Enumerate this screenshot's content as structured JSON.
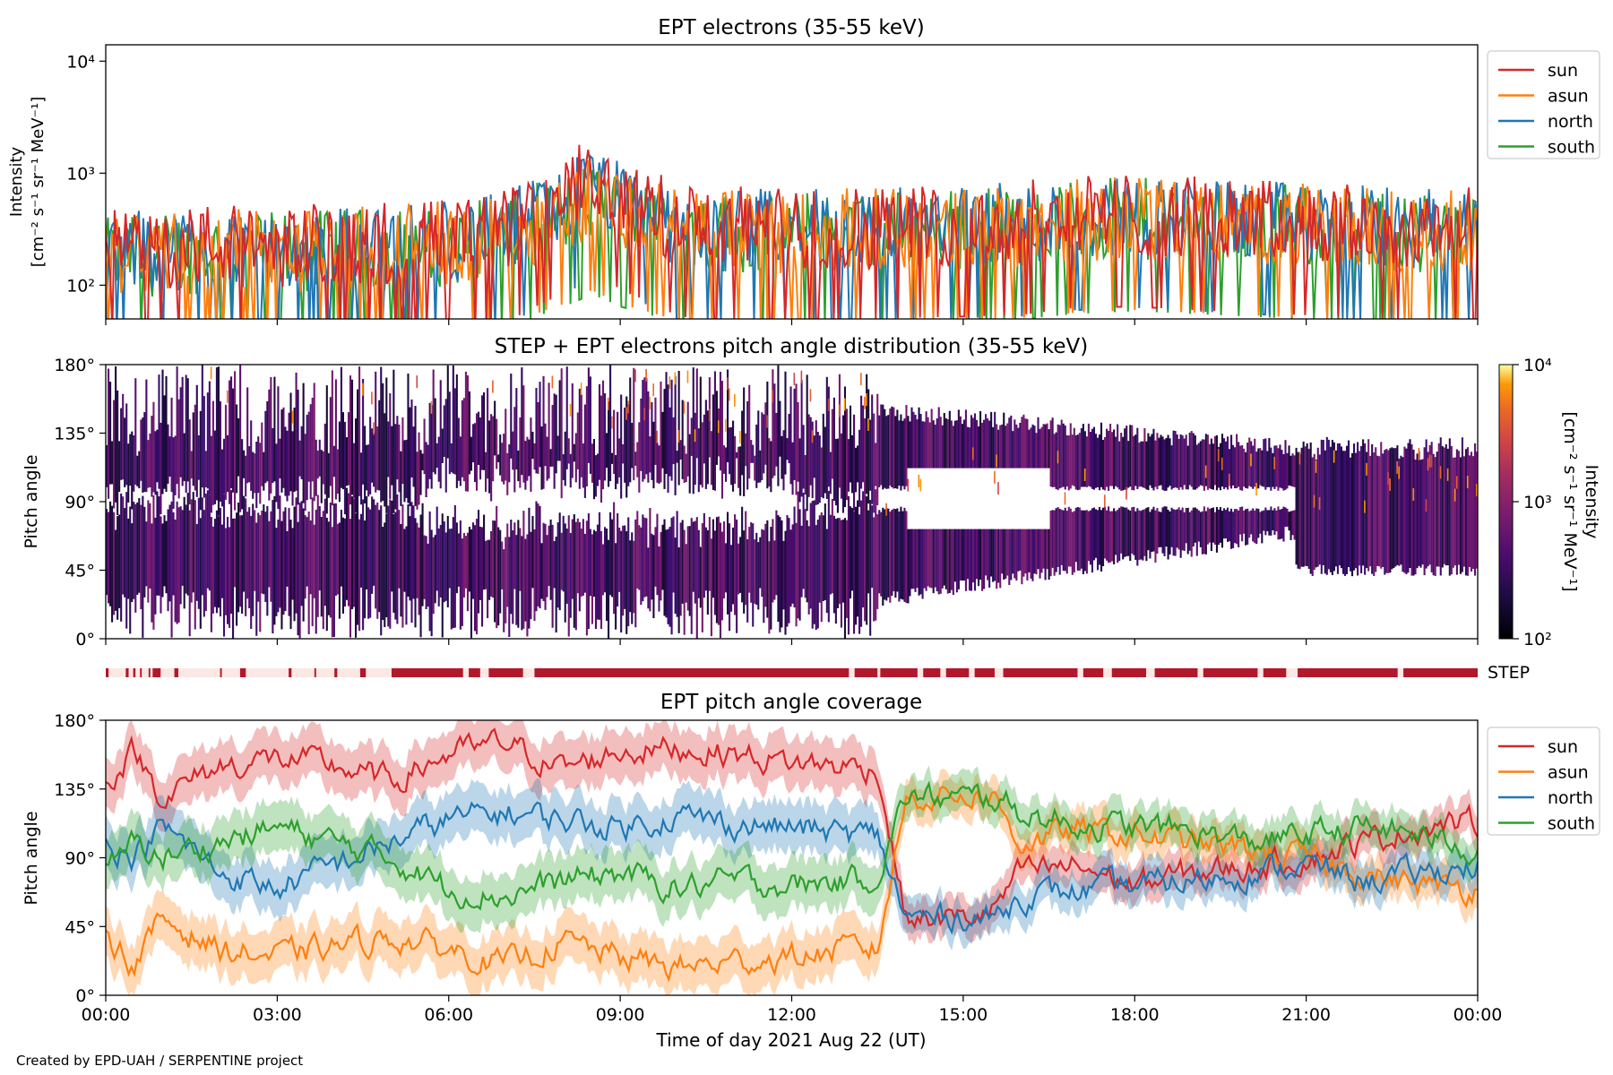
{
  "figure": {
    "credit": "Created by EPD-UAH / SERPENTINE project",
    "xlabel": "Time of day 2021 Aug 22 (UT)",
    "xticks": [
      "00:00",
      "03:00",
      "06:00",
      "09:00",
      "12:00",
      "15:00",
      "18:00",
      "21:00",
      "00:00"
    ]
  },
  "panels": {
    "intensity": {
      "title": "EPT electrons (35-55 keV)",
      "ylabel1": "Intensity",
      "ylabel2": "[cm⁻² s⁻¹ sr⁻¹ MeV⁻¹]",
      "yticks": [
        "10²",
        "10³",
        "10⁴"
      ],
      "legend": [
        "sun",
        "asun",
        "north",
        "south"
      ]
    },
    "pad": {
      "title": "STEP + EPT electrons pitch angle distribution (35-55 keV)",
      "ylabel": "Pitch angle",
      "yticks": [
        "0°",
        "45°",
        "90°",
        "135°",
        "180°"
      ],
      "colorbar_label1": "Intensity",
      "colorbar_label2": "[cm⁻² s⁻¹ sr⁻¹ MeV⁻¹]",
      "colorbar_ticks": [
        "10²",
        "10³",
        "10⁴"
      ]
    },
    "step": {
      "label": "STEP"
    },
    "coverage": {
      "title": "EPT pitch angle coverage",
      "ylabel": "Pitch angle",
      "yticks": [
        "0°",
        "45°",
        "90°",
        "135°",
        "180°"
      ],
      "legend": [
        "sun",
        "asun",
        "north",
        "south"
      ]
    }
  },
  "colors": {
    "sun": "#d62728",
    "asun": "#ff7f0e",
    "north": "#1f77b4",
    "south": "#2ca02c",
    "step_bar": "#b2182b"
  },
  "chart_data": [
    {
      "type": "line",
      "title": "EPT electrons (35-55 keV)",
      "xlabel": "",
      "ylabel": "Intensity [cm⁻² s⁻¹ sr⁻¹ MeV⁻¹]",
      "yscale": "log",
      "ylim": [
        50,
        14000
      ],
      "x_hours": [
        0,
        1,
        2,
        3,
        4,
        5,
        6,
        7,
        8,
        8.5,
        9,
        10,
        11,
        12,
        13,
        14,
        15,
        16,
        17,
        18,
        19,
        20,
        21,
        22,
        23,
        24
      ],
      "series": [
        {
          "name": "sun",
          "values": [
            200,
            220,
            230,
            220,
            230,
            240,
            260,
            300,
            550,
            950,
            600,
            350,
            330,
            320,
            330,
            340,
            350,
            360,
            420,
            430,
            400,
            380,
            360,
            340,
            330,
            320
          ]
        },
        {
          "name": "asun",
          "values": [
            180,
            200,
            210,
            200,
            210,
            220,
            240,
            280,
            450,
            600,
            450,
            320,
            300,
            300,
            310,
            320,
            330,
            340,
            380,
            400,
            380,
            360,
            340,
            320,
            310,
            300
          ]
        },
        {
          "name": "north",
          "values": [
            190,
            210,
            220,
            210,
            220,
            230,
            250,
            290,
            500,
            800,
            550,
            330,
            310,
            310,
            320,
            330,
            340,
            350,
            400,
            420,
            390,
            370,
            350,
            330,
            320,
            310
          ]
        },
        {
          "name": "south",
          "values": [
            170,
            190,
            200,
            190,
            200,
            210,
            230,
            270,
            420,
            550,
            430,
            300,
            290,
            290,
            300,
            310,
            320,
            330,
            370,
            390,
            370,
            350,
            330,
            310,
            300,
            290
          ]
        }
      ],
      "legend": "upper-right-outside"
    },
    {
      "type": "heatmap",
      "title": "STEP + EPT electrons pitch angle distribution (35-55 keV)",
      "ylabel": "Pitch angle",
      "ylim": [
        0,
        180
      ],
      "color_scale": "log",
      "clim": [
        100,
        10000
      ],
      "colormap": "inferno"
    },
    {
      "type": "line",
      "title": "EPT pitch angle coverage",
      "xlabel": "Time of day 2021 Aug 22 (UT)",
      "ylabel": "Pitch angle",
      "ylim": [
        0,
        180
      ],
      "x_hours": [
        0,
        0.5,
        1,
        2,
        3,
        4,
        5,
        6,
        7,
        8,
        9,
        10,
        11,
        12,
        13,
        13.5,
        14,
        15,
        15.5,
        16,
        17,
        18,
        19,
        20,
        21,
        22,
        23,
        24
      ],
      "series": [
        {
          "name": "sun",
          "values": [
            140,
            160,
            130,
            150,
            155,
            150,
            140,
            158,
            165,
            148,
            160,
            162,
            158,
            152,
            150,
            148,
            50,
            50,
            55,
            80,
            85,
            72,
            80,
            84,
            90,
            100,
            110,
            113
          ]
        },
        {
          "name": "asun",
          "values": [
            40,
            20,
            50,
            30,
            25,
            32,
            38,
            30,
            20,
            35,
            25,
            18,
            22,
            25,
            30,
            30,
            130,
            132,
            130,
            100,
            108,
            105,
            100,
            95,
            90,
            80,
            72,
            70
          ]
        },
        {
          "name": "north",
          "values": [
            100,
            90,
            110,
            80,
            70,
            85,
            100,
            115,
            120,
            115,
            110,
            118,
            112,
            110,
            105,
            105,
            50,
            52,
            50,
            65,
            68,
            72,
            75,
            80,
            85,
            75,
            80,
            85
          ]
        },
        {
          "name": "south",
          "values": [
            80,
            100,
            90,
            100,
            110,
            100,
            90,
            70,
            65,
            75,
            80,
            70,
            75,
            72,
            75,
            78,
            130,
            128,
            130,
            120,
            112,
            110,
            108,
            100,
            105,
            110,
            105,
            95
          ]
        }
      ],
      "legend": "upper-right-outside"
    }
  ]
}
